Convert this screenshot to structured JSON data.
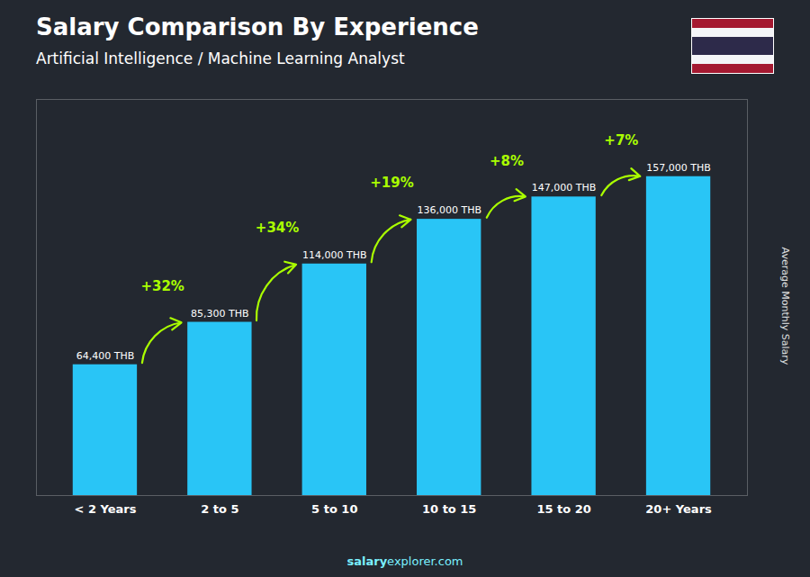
{
  "chart_data": {
    "type": "bar",
    "title": "Salary Comparison By Experience",
    "subtitle": "Artificial Intelligence / Machine Learning Analyst",
    "categories": [
      "< 2 Years",
      "2 to 5",
      "5 to 10",
      "10 to 15",
      "15 to 20",
      "20+ Years"
    ],
    "values": [
      64400,
      85300,
      114000,
      136000,
      147000,
      157000
    ],
    "value_labels": [
      "64,400 THB",
      "85,300 THB",
      "114,000 THB",
      "136,000 THB",
      "147,000 THB",
      "157,000 THB"
    ],
    "data_labels": true,
    "color": "#29c5f6",
    "ylim": [
      0,
      195000
    ],
    "ylabel": "Average Monthly Salary",
    "tick_labels": "x",
    "grid": false,
    "annotations": [
      {
        "category": "2 to 5",
        "text": "+32%",
        "color": "#aaff00"
      },
      {
        "category": "5 to 10",
        "text": "+34%",
        "color": "#aaff00"
      },
      {
        "category": "10 to 15",
        "text": "+19%",
        "color": "#aaff00"
      },
      {
        "category": "15 to 20",
        "text": "+8%",
        "color": "#aaff00"
      },
      {
        "category": "20+ Years",
        "text": "+7%",
        "color": "#aaff00"
      }
    ],
    "caption": [
      "salary",
      "explorer.com"
    ]
  }
}
